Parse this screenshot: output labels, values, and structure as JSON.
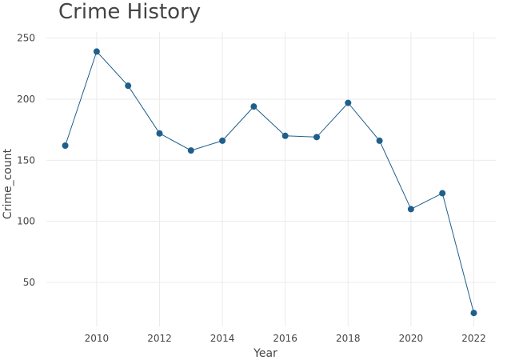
{
  "chart_data": {
    "type": "line",
    "title": "Crime History",
    "xlabel": "Year",
    "ylabel": "Crime_count",
    "x": [
      2009,
      2010,
      2011,
      2012,
      2013,
      2014,
      2015,
      2016,
      2017,
      2018,
      2019,
      2020,
      2021,
      2022
    ],
    "series": [
      {
        "values": [
          162,
          239,
          211,
          172,
          158,
          166,
          194,
          170,
          169,
          197,
          166,
          110,
          123,
          25
        ]
      }
    ],
    "x_ticks": [
      2010,
      2012,
      2014,
      2016,
      2018,
      2020,
      2022
    ],
    "y_ticks": [
      50,
      100,
      150,
      200,
      250
    ],
    "xlim": [
      2008.4,
      2022.7
    ],
    "ylim": [
      14,
      255
    ],
    "grid": true,
    "line_color": "#1f5f8b",
    "marker_color": "#1f5f8b",
    "grid_color": "#ebebeb"
  }
}
